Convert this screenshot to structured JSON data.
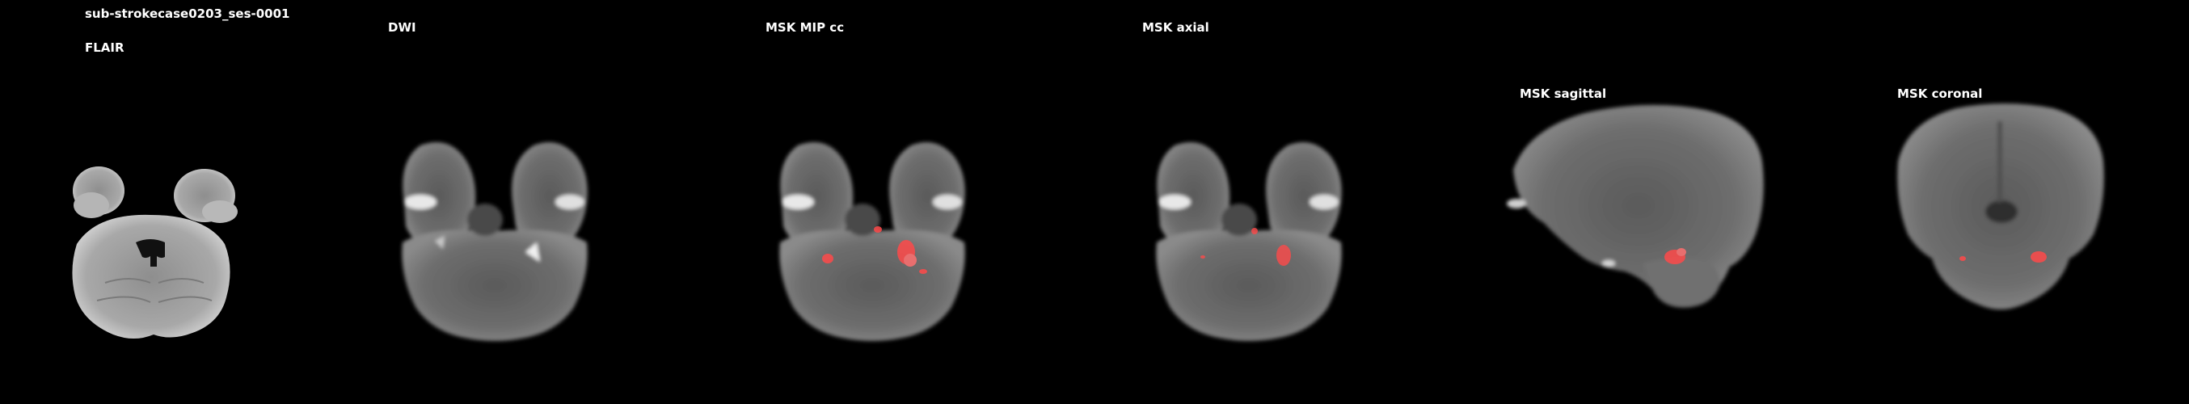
{
  "subject": "sub-strokecase0203_ses-0001",
  "panels": [
    {
      "id": "flair",
      "title": "FLAIR",
      "overlay": false
    },
    {
      "id": "dwi",
      "title": "DWI",
      "overlay": false
    },
    {
      "id": "msk-mip",
      "title": "MSK MIP cc",
      "overlay": true
    },
    {
      "id": "msk-axial",
      "title": "MSK axial",
      "overlay": true
    },
    {
      "id": "msk-sagittal",
      "title": "MSK sagittal",
      "overlay": true
    },
    {
      "id": "msk-coronal",
      "title": "MSK coronal",
      "overlay": true
    }
  ],
  "colors": {
    "background": "#000000",
    "text": "#ffffff",
    "lesion_overlay": "#ff4a4a"
  }
}
